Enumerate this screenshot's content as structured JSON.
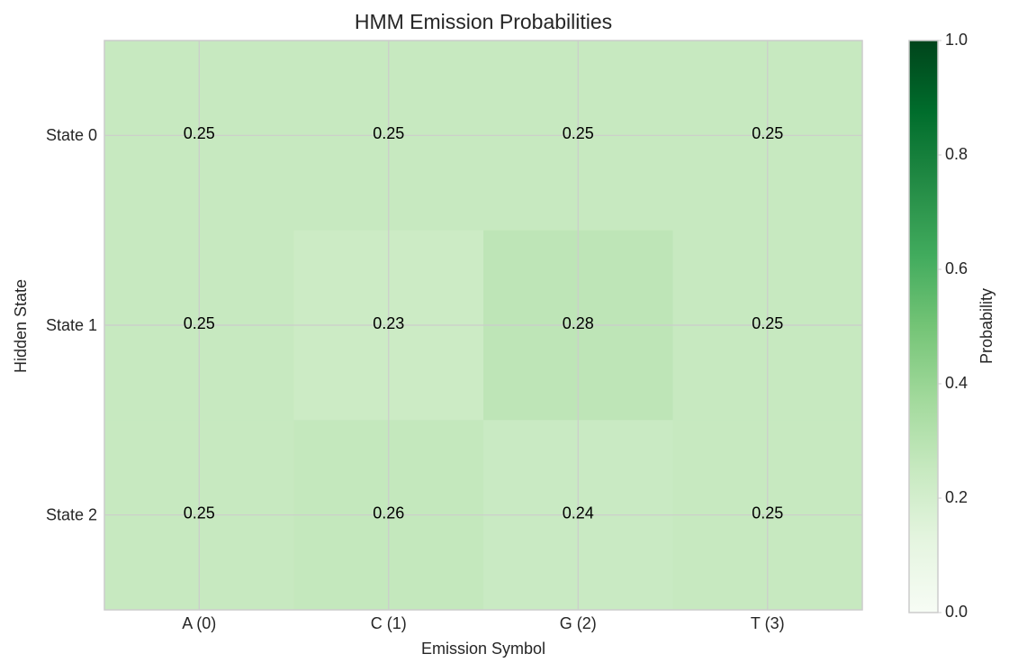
{
  "chart_data": {
    "type": "heatmap",
    "title": "HMM Emission Probabilities",
    "x_label": "Emission Symbol",
    "y_label": "Hidden State",
    "x_categories": [
      "A (0)",
      "C (1)",
      "G (2)",
      "T (3)"
    ],
    "y_categories": [
      "State 0",
      "State 1",
      "State 2"
    ],
    "values": [
      [
        0.25,
        0.25,
        0.25,
        0.25
      ],
      [
        0.25,
        0.23,
        0.28,
        0.25
      ],
      [
        0.25,
        0.26,
        0.24,
        0.25
      ]
    ],
    "grid": true,
    "colormap": [
      "#f7fcf5",
      "#e5f5e0",
      "#c7e9c0",
      "#a1d99b",
      "#74c476",
      "#41ab5d",
      "#238b45",
      "#006d2c",
      "#00441b"
    ],
    "colorbar_label": "Probability",
    "clim": [
      0,
      1
    ],
    "cticks": [
      {
        "value": 0,
        "label": "0.0"
      },
      0.2,
      0.4,
      0.6,
      0.8,
      {
        "value": 1,
        "label": "1.0"
      }
    ]
  }
}
